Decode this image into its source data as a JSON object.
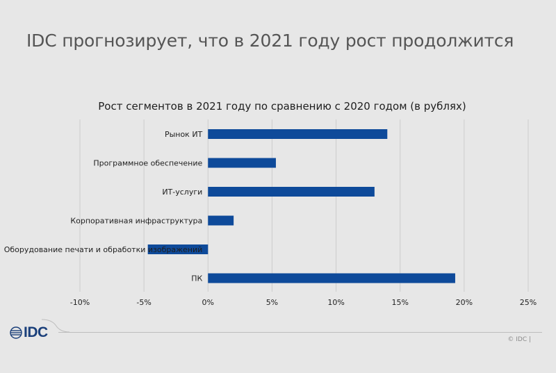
{
  "slide": {
    "title": "IDC прогнозирует, что в 2021 году рост продолжится"
  },
  "footer": {
    "logo_text": "IDC",
    "copyright": "© IDC |"
  },
  "colors": {
    "bar": "#0e4a9a",
    "grid": "#cccccc",
    "text": "#1e1e1e",
    "background": "#e7e7e7"
  },
  "chart_data": {
    "type": "bar",
    "orientation": "horizontal",
    "title": "Рост сегментов в 2021 году по сравнению с 2020 годом (в рублях)",
    "categories": [
      "Рынок ИТ",
      "Программное обеспечение",
      "ИТ-услуги",
      "Корпоративная инфраструктура",
      "Оборудование печати и обработки изображений",
      "ПК"
    ],
    "values": [
      14.0,
      5.3,
      13.0,
      2.0,
      -4.7,
      19.3
    ],
    "xlim": [
      -10,
      25
    ],
    "xticks": [
      -10,
      -5,
      0,
      5,
      10,
      15,
      20,
      25
    ],
    "xtick_labels": [
      "-10%",
      "-5%",
      "0%",
      "5%",
      "10%",
      "15%",
      "20%",
      "25%"
    ],
    "grid": true,
    "legend": "none"
  }
}
